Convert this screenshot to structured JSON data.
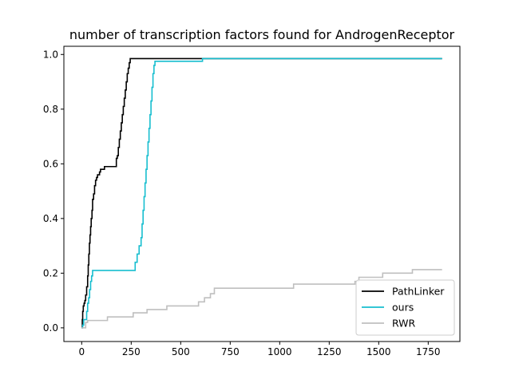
{
  "chart_data": {
    "type": "line",
    "title": "number of transcription factors found for AndrogenReceptor",
    "xlabel": "",
    "ylabel": "",
    "xlim": [
      -90,
      1910
    ],
    "ylim": [
      -0.05,
      1.03
    ],
    "xticks": [
      0,
      250,
      500,
      750,
      1000,
      1250,
      1500,
      1750
    ],
    "yticks": [
      0.0,
      0.2,
      0.4,
      0.6,
      0.8,
      1.0
    ],
    "xtick_labels": [
      "0",
      "250",
      "500",
      "750",
      "1000",
      "1250",
      "1500",
      "1750"
    ],
    "ytick_labels": [
      "0.0",
      "0.2",
      "0.4",
      "0.6",
      "0.8",
      "1.0"
    ],
    "grid": false,
    "legend_position": "lower-right",
    "series": [
      {
        "name": "PathLinker",
        "color": "#000000",
        "step": true,
        "x": [
          0,
          3,
          5,
          8,
          12,
          16,
          20,
          25,
          30,
          33,
          36,
          39,
          42,
          45,
          48,
          52,
          55,
          60,
          65,
          70,
          75,
          80,
          85,
          90,
          95,
          100,
          108,
          115,
          125,
          150,
          175,
          180,
          185,
          190,
          195,
          200,
          205,
          210,
          215,
          220,
          225,
          230,
          235,
          240,
          245,
          250,
          255,
          260,
          400,
          600,
          1820
        ],
        "y": [
          0.0,
          0.03,
          0.06,
          0.08,
          0.09,
          0.1,
          0.12,
          0.15,
          0.19,
          0.23,
          0.27,
          0.31,
          0.34,
          0.37,
          0.4,
          0.43,
          0.47,
          0.49,
          0.52,
          0.54,
          0.55,
          0.56,
          0.56,
          0.57,
          0.58,
          0.58,
          0.58,
          0.59,
          0.59,
          0.59,
          0.62,
          0.63,
          0.66,
          0.69,
          0.72,
          0.75,
          0.78,
          0.81,
          0.84,
          0.87,
          0.9,
          0.93,
          0.95,
          0.97,
          0.985,
          0.985,
          0.985,
          0.985,
          0.985,
          0.985,
          0.985
        ]
      },
      {
        "name": "ours",
        "color": "#17becf",
        "step": true,
        "x": [
          0,
          5,
          10,
          20,
          25,
          30,
          35,
          40,
          45,
          50,
          55,
          100,
          200,
          270,
          280,
          290,
          300,
          305,
          310,
          315,
          320,
          325,
          330,
          335,
          340,
          345,
          350,
          355,
          360,
          365,
          370,
          400,
          600,
          610,
          700,
          1000,
          1820
        ],
        "y": [
          0.0,
          0.01,
          0.03,
          0.03,
          0.06,
          0.09,
          0.11,
          0.14,
          0.17,
          0.19,
          0.21,
          0.21,
          0.21,
          0.24,
          0.27,
          0.3,
          0.33,
          0.38,
          0.43,
          0.48,
          0.53,
          0.58,
          0.63,
          0.68,
          0.73,
          0.78,
          0.83,
          0.88,
          0.93,
          0.96,
          0.975,
          0.975,
          0.975,
          0.985,
          0.985,
          0.985,
          0.985
        ]
      },
      {
        "name": "RWR",
        "color": "#bfbfbf",
        "step": true,
        "x": [
          0,
          20,
          30,
          130,
          200,
          260,
          330,
          430,
          590,
          620,
          650,
          670,
          1070,
          1380,
          1400,
          1520,
          1670,
          1820
        ],
        "y": [
          0.0,
          0.02,
          0.027,
          0.04,
          0.04,
          0.055,
          0.067,
          0.08,
          0.095,
          0.11,
          0.125,
          0.145,
          0.16,
          0.17,
          0.185,
          0.2,
          0.213,
          0.213
        ]
      }
    ]
  }
}
